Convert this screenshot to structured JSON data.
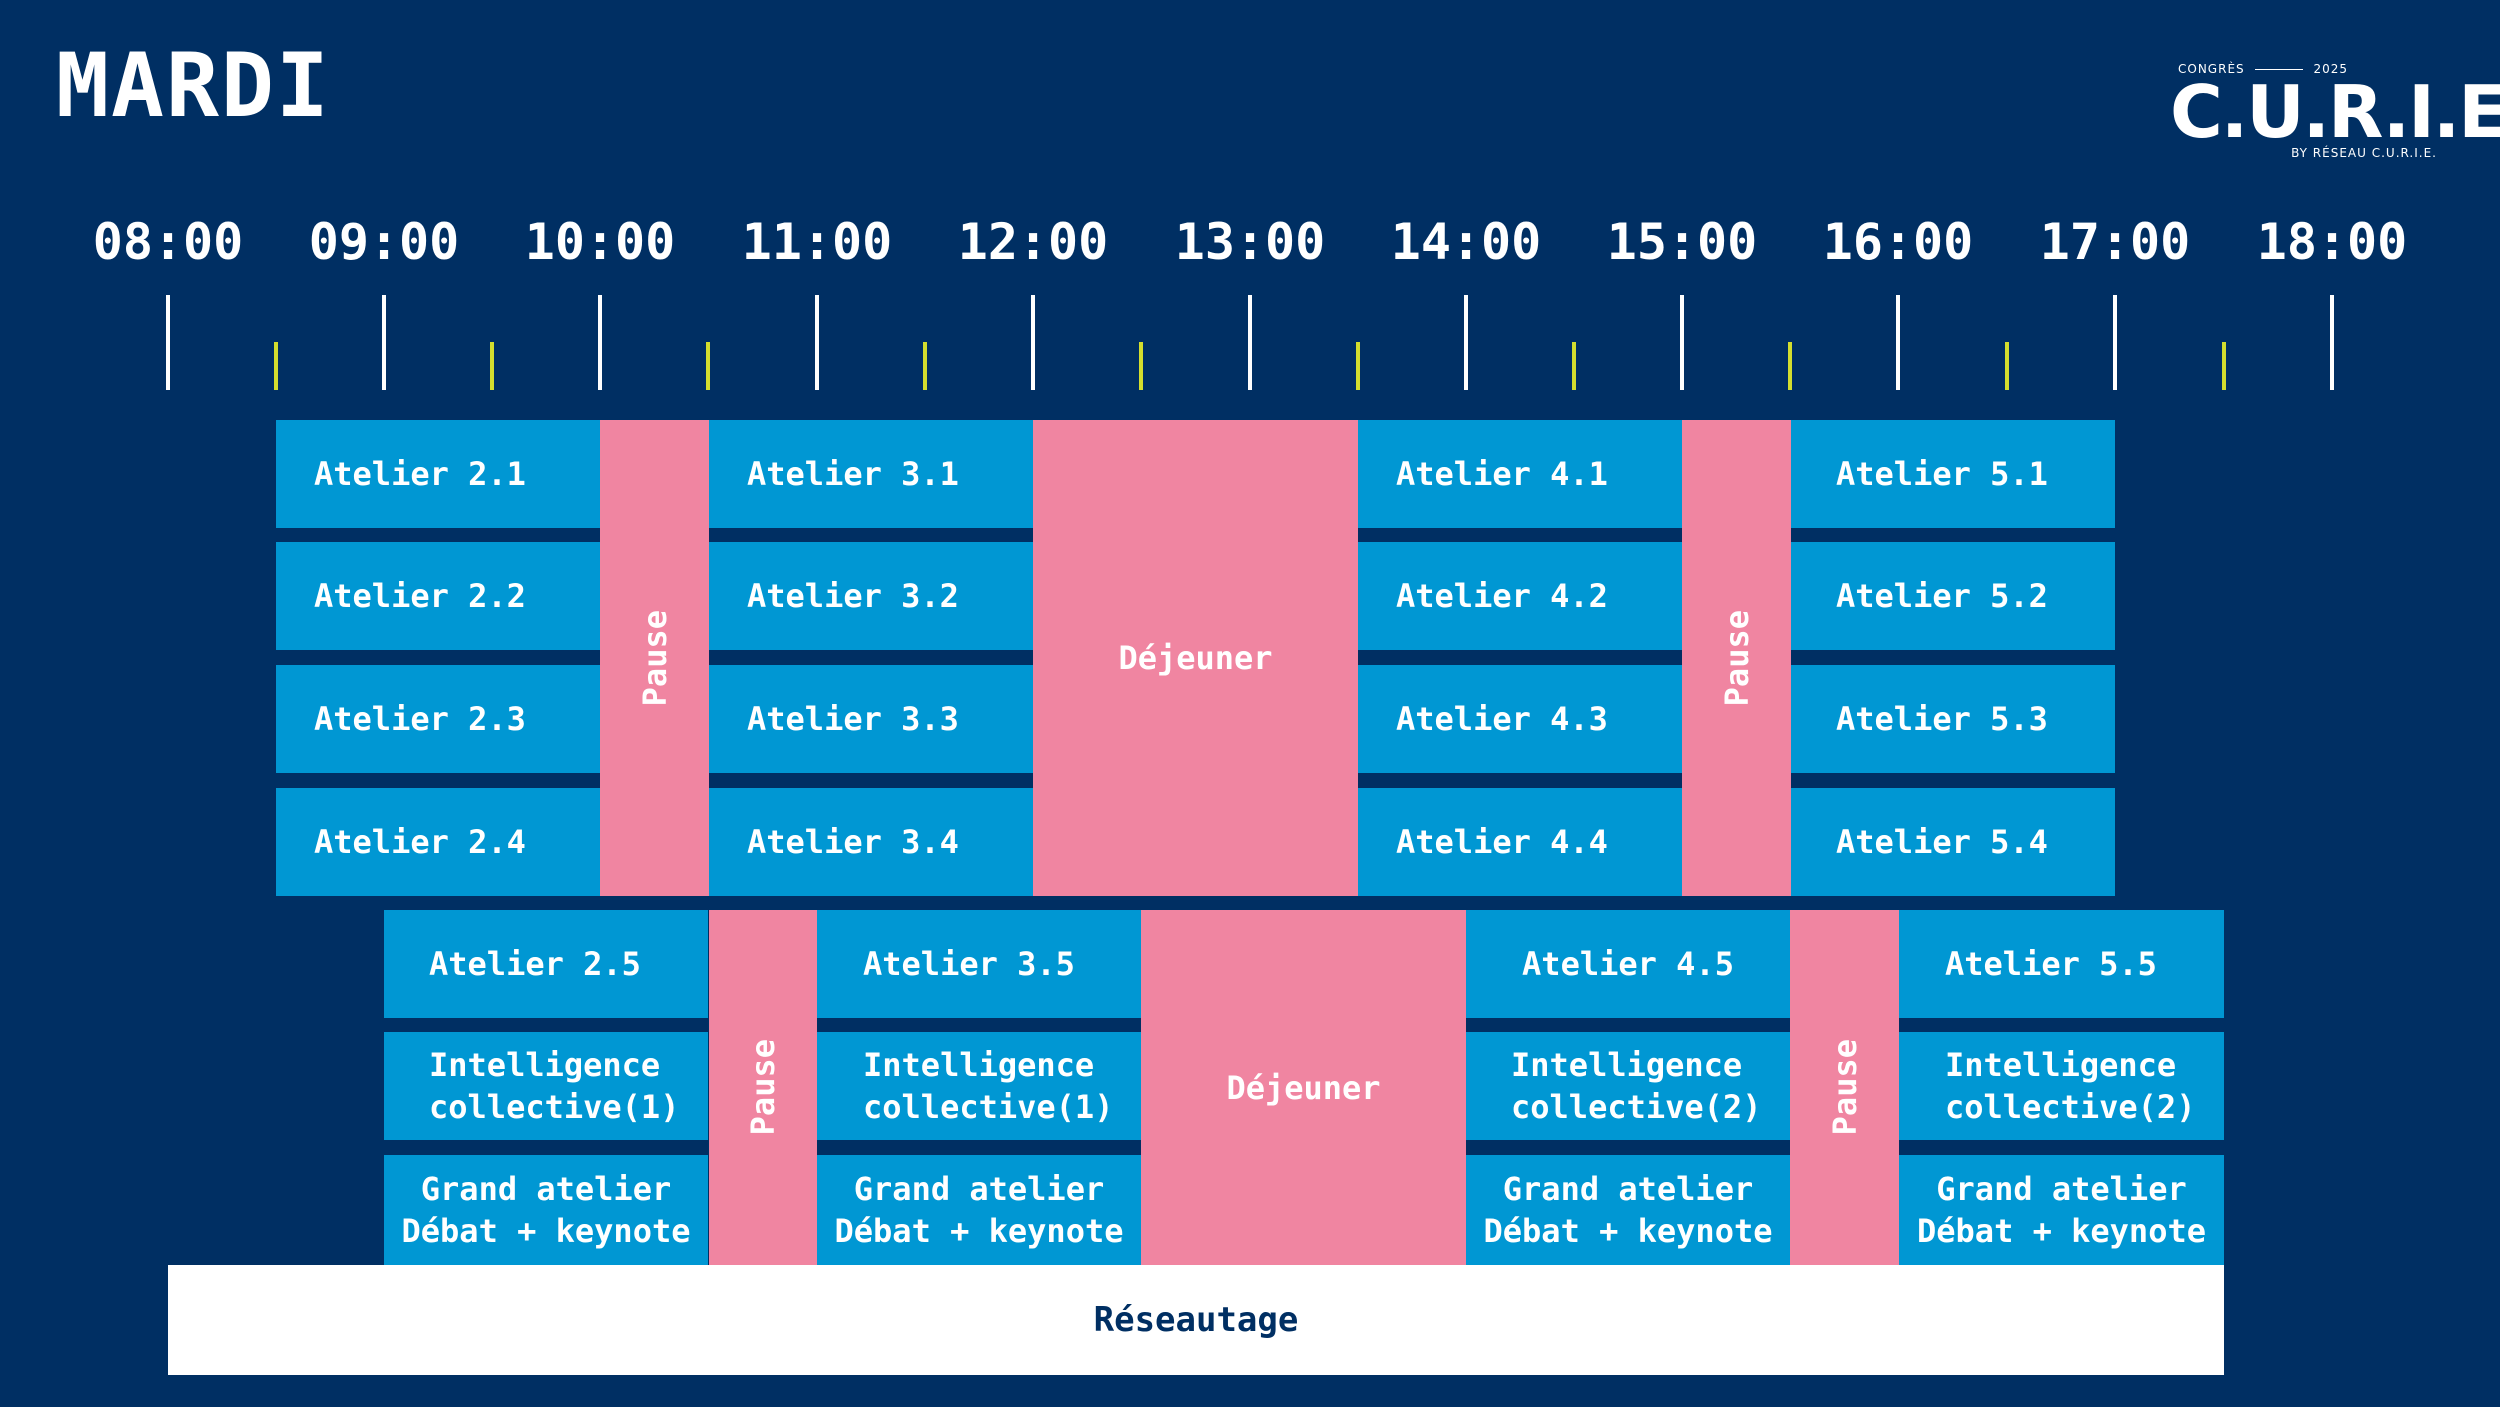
{
  "page": {
    "title": "MARDI"
  },
  "logo": {
    "top_left": "CONGRÈS",
    "top_right": "2025",
    "main": "C.U.R.I.E.",
    "bottom": "BY RÉSEAU C.U.R.I.E."
  },
  "timeline": {
    "hours": [
      "08:00",
      "09:00",
      "10:00",
      "11:00",
      "12:00",
      "13:00",
      "14:00",
      "15:00",
      "16:00",
      "17:00",
      "18:00"
    ]
  },
  "colors": {
    "background": "#002f63",
    "session": "#0097d3",
    "break": "#f085a1",
    "half_tick": "#d4de2e"
  },
  "track1": {
    "col2": [
      "Atelier 2.1",
      "Atelier 2.2",
      "Atelier 2.3",
      "Atelier 2.4"
    ],
    "pause1": "Pause",
    "col3": [
      "Atelier 3.1",
      "Atelier 3.2",
      "Atelier 3.3",
      "Atelier 3.4"
    ],
    "lunch": "Déjeuner",
    "col4": [
      "Atelier 4.1",
      "Atelier 4.2",
      "Atelier 4.3",
      "Atelier 4.4"
    ],
    "pause2": "Pause",
    "col5": [
      "Atelier 5.1",
      "Atelier 5.2",
      "Atelier 5.3",
      "Atelier 5.4"
    ]
  },
  "track2": {
    "col2": {
      "atelier": "Atelier 2.5",
      "ic_line1": "Intelligence",
      "ic_line2": "collective(1)",
      "ga_line1": "Grand atelier",
      "ga_line2": "Débat + keynote"
    },
    "pause1": "Pause",
    "col3": {
      "atelier": "Atelier 3.5",
      "ic_line1": "Intelligence",
      "ic_line2": "collective(1)",
      "ga_line1": "Grand atelier",
      "ga_line2": "Débat + keynote"
    },
    "lunch": "Déjeuner",
    "col4": {
      "atelier": "Atelier 4.5",
      "ic_line1": "Intelligence",
      "ic_line2": "collective(2)",
      "ga_line1": "Grand atelier",
      "ga_line2": "Débat + keynote"
    },
    "pause2": "Pause",
    "col5": {
      "atelier": "Atelier 5.5",
      "ic_line1": "Intelligence",
      "ic_line2": "collective(2)",
      "ga_line1": "Grand atelier",
      "ga_line2": "Débat + keynote"
    }
  },
  "networking": "Réseautage"
}
